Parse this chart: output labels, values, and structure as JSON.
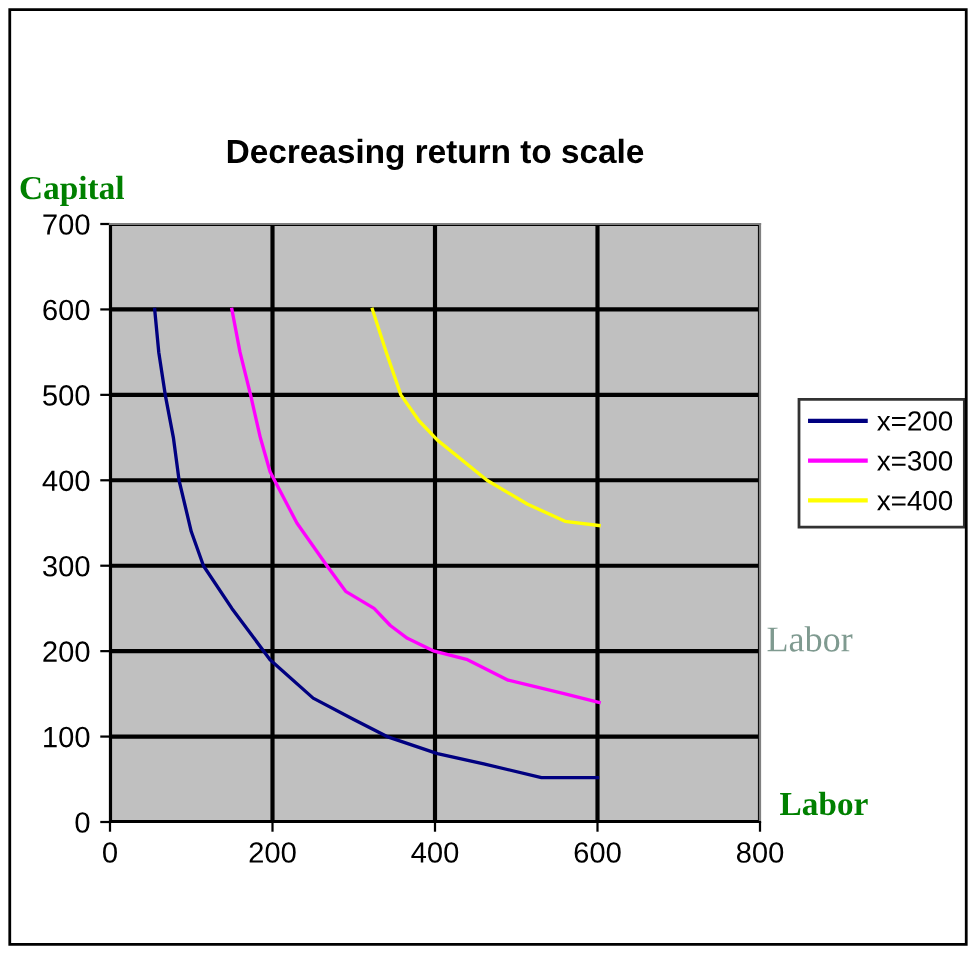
{
  "chart_data": {
    "type": "line",
    "title": "Decreasing return to scale",
    "xlabel": "Labor",
    "ylabel": "Capital",
    "annotations": [
      "Labor"
    ],
    "xlim": [
      0,
      800
    ],
    "xticks": [
      0,
      200,
      400,
      600,
      800
    ],
    "ylim": [
      0,
      700
    ],
    "yticks": [
      0,
      100,
      200,
      300,
      400,
      500,
      600,
      700
    ],
    "grid": true,
    "legend": "right",
    "line_style": "solid",
    "marker": "none",
    "series": [
      {
        "name": "x=200",
        "color": "#000080",
        "x": [
          55,
          60,
          68,
          78,
          85,
          100,
          115,
          150,
          197,
          250,
          300,
          341,
          403,
          460,
          531,
          600
        ],
        "values": [
          600,
          550,
          500,
          450,
          400,
          340,
          300,
          250,
          190,
          145,
          120,
          100,
          80,
          68,
          52,
          52
        ]
      },
      {
        "name": "x=300",
        "color": "#ff00ff",
        "x": [
          150,
          160,
          173,
          185,
          197,
          230,
          267,
          290,
          325,
          345,
          366,
          399,
          440,
          490,
          560,
          602
        ],
        "values": [
          600,
          550,
          500,
          450,
          410,
          350,
          300,
          270,
          250,
          230,
          215,
          200,
          190,
          166,
          150,
          140
        ]
      },
      {
        "name": "x=400",
        "color": "#ffff00",
        "x": [
          323,
          340,
          358,
          380,
          403,
          464,
          514,
          560,
          602
        ],
        "values": [
          600,
          550,
          500,
          470,
          447,
          400,
          372,
          352,
          347
        ]
      }
    ]
  }
}
